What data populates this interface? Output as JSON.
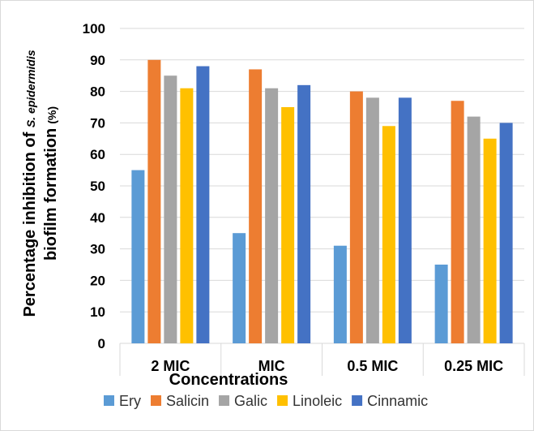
{
  "chart_data": {
    "type": "bar",
    "title": "",
    "xlabel": "Concentrations",
    "ylabel": {
      "line1_prefix": "Percentage inhibition of ",
      "line1_species": "S. epidermidis",
      "line2_main": "biofilm formation",
      "line2_unit": "(%)"
    },
    "categories": [
      "2 MIC",
      "MIC",
      "0.5 MIC",
      "0.25 MIC"
    ],
    "ylim": [
      0,
      100
    ],
    "yticks": [
      0,
      10,
      20,
      30,
      40,
      50,
      60,
      70,
      80,
      90,
      100
    ],
    "grid": true,
    "legend_position": "bottom",
    "series": [
      {
        "name": "Ery",
        "color": "#5b9bd5",
        "values": [
          55,
          35,
          31,
          25
        ]
      },
      {
        "name": "Salicin",
        "color": "#ed7d31",
        "values": [
          90,
          87,
          80,
          77
        ]
      },
      {
        "name": "Galic",
        "color": "#a5a5a5",
        "values": [
          85,
          81,
          78,
          72
        ]
      },
      {
        "name": "Linoleic",
        "color": "#ffc000",
        "values": [
          81,
          75,
          69,
          65
        ]
      },
      {
        "name": "Cinnamic",
        "color": "#4472c4",
        "values": [
          88,
          82,
          78,
          70
        ]
      }
    ]
  }
}
